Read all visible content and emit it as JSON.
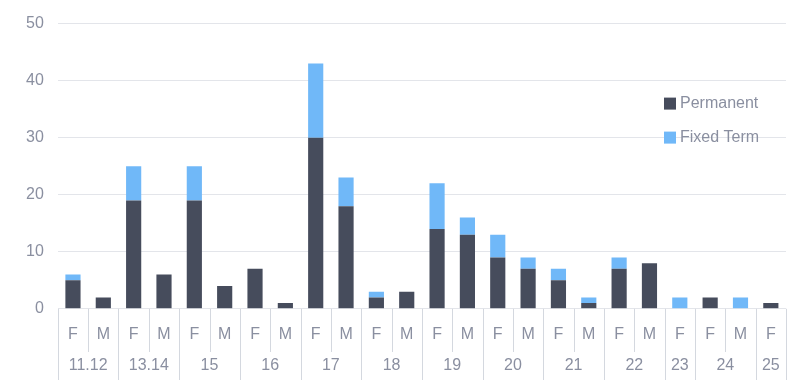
{
  "chart_data": {
    "type": "bar",
    "stacked": true,
    "grid": true,
    "legend": "right",
    "categories": [
      "F",
      "M",
      "F",
      "M",
      "F",
      "M",
      "F",
      "M",
      "F",
      "M",
      "F",
      "M",
      "F",
      "M",
      "F",
      "M",
      "F",
      "M",
      "F",
      "M",
      "F",
      "F",
      "M",
      "F"
    ],
    "groups": [
      "11.12",
      "11.12",
      "13.14",
      "13.14",
      "15",
      "15",
      "16",
      "16",
      "17",
      "17",
      "18",
      "18",
      "19",
      "19",
      "20",
      "20",
      "21",
      "21",
      "22",
      "22",
      "23",
      "24",
      "24",
      "25"
    ],
    "series": [
      {
        "name": "Permanent",
        "color": "#464c5c",
        "values": [
          5,
          2,
          19,
          6,
          19,
          4,
          7,
          1,
          30,
          18,
          2,
          3,
          14,
          13,
          9,
          7,
          5,
          1,
          7,
          8,
          0,
          2,
          0,
          1
        ]
      },
      {
        "name": "Fixed Term",
        "color": "#70b8f8",
        "values": [
          1,
          0,
          6,
          0,
          6,
          0,
          0,
          0,
          13,
          5,
          1,
          0,
          8,
          3,
          4,
          2,
          2,
          1,
          2,
          0,
          2,
          0,
          2,
          0
        ]
      }
    ],
    "ylim": [
      0,
      50
    ],
    "yticks": [
      0,
      10,
      20,
      30,
      40,
      50
    ]
  }
}
